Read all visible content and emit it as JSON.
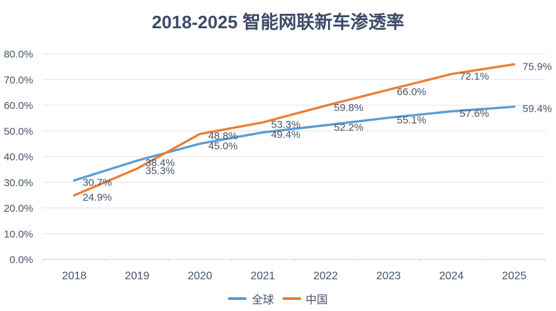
{
  "chart_data": {
    "type": "line",
    "title": "2018-2025 智能网联新车渗透率",
    "categories": [
      "2018",
      "2019",
      "2020",
      "2021",
      "2022",
      "2023",
      "2024",
      "2025"
    ],
    "series": [
      {
        "name": "全球",
        "color": "#5B9BD5",
        "values": [
          30.7,
          38.4,
          45.0,
          49.4,
          52.2,
          55.1,
          57.6,
          59.4
        ]
      },
      {
        "name": "中国",
        "color": "#ED7D31",
        "values": [
          24.9,
          35.3,
          48.8,
          53.3,
          59.8,
          66.0,
          72.1,
          75.9
        ]
      }
    ],
    "ylim": [
      0,
      80
    ],
    "ytick_step": 10,
    "ytick_labels": [
      "0.0%",
      "10.0%",
      "20.0%",
      "30.0%",
      "40.0%",
      "50.0%",
      "60.0%",
      "70.0%",
      "80.0%"
    ],
    "value_suffix": "%",
    "grid": true,
    "data_labels": true,
    "legend_position": "bottom",
    "colors": {
      "title_text": "#3E4C69",
      "axis_text": "#44546A",
      "label_text": "#44546A",
      "gridline": "#E3E8EE",
      "axis_line": "#D5DCE4"
    }
  }
}
